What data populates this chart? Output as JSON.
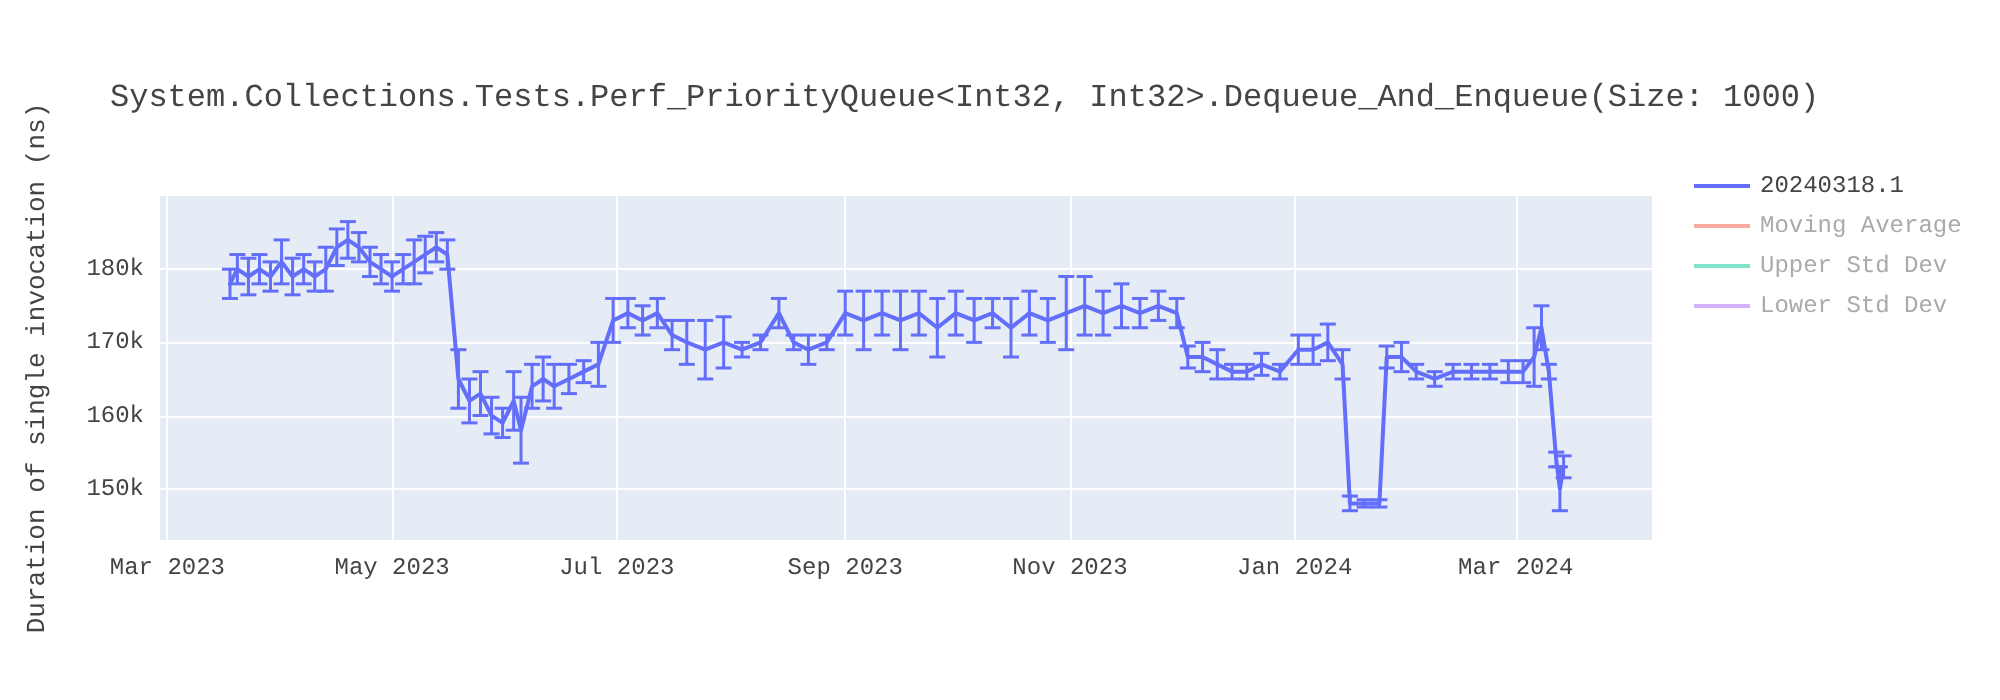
{
  "chart_data": {
    "type": "line",
    "title": "System.Collections.Tests.Perf_PriorityQueue<Int32, Int32>.Dequeue_And_Enqueue(Size: 1000)",
    "ylabel": "Duration of single invocation (ns)",
    "x": [
      "2023-03-18",
      "2023-03-20",
      "2023-03-23",
      "2023-03-26",
      "2023-03-29",
      "2023-04-01",
      "2023-04-04",
      "2023-04-07",
      "2023-04-10",
      "2023-04-13",
      "2023-04-16",
      "2023-04-19",
      "2023-04-22",
      "2023-04-25",
      "2023-04-28",
      "2023-05-01",
      "2023-05-04",
      "2023-05-07",
      "2023-05-10",
      "2023-05-13",
      "2023-05-16",
      "2023-05-19",
      "2023-05-22",
      "2023-05-25",
      "2023-05-28",
      "2023-05-31",
      "2023-06-03",
      "2023-06-05",
      "2023-06-08",
      "2023-06-11",
      "2023-06-14",
      "2023-06-18",
      "2023-06-22",
      "2023-06-26",
      "2023-06-30",
      "2023-07-04",
      "2023-07-08",
      "2023-07-12",
      "2023-07-16",
      "2023-07-20",
      "2023-07-25",
      "2023-07-30",
      "2023-08-04",
      "2023-08-09",
      "2023-08-14",
      "2023-08-18",
      "2023-08-22",
      "2023-08-27",
      "2023-09-01",
      "2023-09-06",
      "2023-09-11",
      "2023-09-16",
      "2023-09-21",
      "2023-09-26",
      "2023-10-01",
      "2023-10-06",
      "2023-10-11",
      "2023-10-16",
      "2023-10-21",
      "2023-10-26",
      "2023-10-31",
      "2023-11-05",
      "2023-11-10",
      "2023-11-15",
      "2023-11-20",
      "2023-11-25",
      "2023-11-30",
      "2023-12-03",
      "2023-12-07",
      "2023-12-11",
      "2023-12-15",
      "2023-12-19",
      "2023-12-23",
      "2023-12-28",
      "2024-01-02",
      "2024-01-06",
      "2024-01-10",
      "2024-01-14",
      "2024-01-16",
      "2024-01-20",
      "2024-01-24",
      "2024-01-26",
      "2024-01-30",
      "2024-02-03",
      "2024-02-08",
      "2024-02-13",
      "2024-02-18",
      "2024-02-23",
      "2024-02-28",
      "2024-03-03",
      "2024-03-06",
      "2024-03-08",
      "2024-03-10",
      "2024-03-12",
      "2024-03-13",
      "2024-03-14"
    ],
    "series": [
      {
        "name": "20240318.1",
        "color": "#636efa",
        "values": [
          178000,
          180000,
          179000,
          180000,
          179000,
          181000,
          179000,
          180000,
          179000,
          180000,
          183000,
          184000,
          183000,
          181000,
          180000,
          179000,
          180000,
          181000,
          182000,
          183000,
          182000,
          165000,
          162000,
          163000,
          160000,
          159000,
          162000,
          158000,
          164000,
          165000,
          164000,
          165000,
          166000,
          167000,
          173000,
          174000,
          173000,
          174000,
          171000,
          170000,
          169000,
          170000,
          169000,
          170000,
          174000,
          170000,
          169000,
          170000,
          174000,
          173000,
          174000,
          173000,
          174000,
          172000,
          174000,
          173000,
          174000,
          172000,
          174000,
          173000,
          174000,
          175000,
          174000,
          175000,
          174000,
          175000,
          174000,
          168000,
          168000,
          167000,
          166000,
          166000,
          167000,
          166000,
          169000,
          169000,
          170000,
          167000,
          148000,
          148000,
          148000,
          168000,
          168000,
          166000,
          165000,
          166000,
          166000,
          166000,
          166000,
          166000,
          168000,
          172000,
          166000,
          154000,
          150000,
          153000
        ],
        "errors": [
          2000,
          2000,
          2500,
          2000,
          2000,
          3000,
          2500,
          2000,
          2000,
          3000,
          2500,
          2500,
          2000,
          2000,
          2000,
          2000,
          2000,
          3000,
          2500,
          2000,
          2000,
          4000,
          3000,
          3000,
          2500,
          2000,
          4000,
          4500,
          3000,
          3000,
          3000,
          2000,
          1500,
          3000,
          3000,
          2000,
          2000,
          2000,
          2000,
          3000,
          4000,
          3500,
          1000,
          1000,
          2000,
          1000,
          2000,
          1000,
          3000,
          4000,
          3000,
          4000,
          3000,
          4000,
          3000,
          3000,
          2000,
          4000,
          3000,
          3000,
          5000,
          4000,
          3000,
          3000,
          2000,
          2000,
          2000,
          1500,
          2000,
          2000,
          1000,
          1000,
          1500,
          1000,
          2000,
          2000,
          2500,
          2000,
          1000,
          500,
          500,
          1500,
          2000,
          1000,
          1000,
          1000,
          1000,
          1000,
          1500,
          1500,
          4000,
          3000,
          1000,
          1000,
          3000,
          1500
        ]
      },
      {
        "name": "Moving Average",
        "color": "#ef553b",
        "values": [
          null,
          null,
          null,
          null,
          null,
          null,
          null,
          null,
          null,
          null,
          null,
          null,
          null,
          null,
          null,
          null,
          null,
          null,
          null,
          null,
          null,
          null,
          null,
          null,
          null,
          null,
          null,
          null,
          null,
          null,
          null,
          null,
          null,
          null,
          null,
          null,
          null,
          null,
          null,
          null,
          null,
          null,
          null,
          null,
          null,
          null,
          null,
          null,
          null,
          null,
          null,
          null,
          null,
          null,
          null,
          null,
          null,
          null,
          null,
          null,
          null,
          null,
          null,
          null,
          null,
          null,
          null,
          null,
          null,
          null,
          null,
          null,
          null,
          null,
          null,
          null,
          null,
          null,
          null,
          null,
          null,
          null,
          null,
          null,
          null,
          null,
          null,
          null,
          null,
          null,
          null,
          null,
          null,
          null,
          null,
          null
        ]
      },
      {
        "name": "Upper Std Dev",
        "color": "#00cc96",
        "values": [
          null,
          null,
          null,
          null,
          null,
          null,
          null,
          null,
          null,
          null,
          null,
          null,
          null,
          null,
          null,
          null,
          null,
          null,
          null,
          null,
          null,
          null,
          null,
          null,
          null,
          null,
          null,
          null,
          null,
          null,
          null,
          null,
          null,
          null,
          null,
          null,
          null,
          null,
          null,
          null,
          null,
          null,
          null,
          null,
          null,
          null,
          null,
          null,
          null,
          null,
          null,
          null,
          null,
          null,
          null,
          null,
          null,
          null,
          null,
          null,
          null,
          null,
          null,
          null,
          null,
          null,
          null,
          null,
          null,
          null,
          null,
          null,
          null,
          null,
          null,
          null,
          null,
          null,
          null,
          null,
          null,
          null,
          null,
          null,
          null,
          null,
          null,
          null,
          null,
          null,
          null,
          null,
          null,
          null,
          null,
          null
        ]
      },
      {
        "name": "Lower Std Dev",
        "color": "#ab63fa",
        "values": [
          null,
          null,
          null,
          null,
          null,
          null,
          null,
          null,
          null,
          null,
          null,
          null,
          null,
          null,
          null,
          null,
          null,
          null,
          null,
          null,
          null,
          null,
          null,
          null,
          null,
          null,
          null,
          null,
          null,
          null,
          null,
          null,
          null,
          null,
          null,
          null,
          null,
          null,
          null,
          null,
          null,
          null,
          null,
          null,
          null,
          null,
          null,
          null,
          null,
          null,
          null,
          null,
          null,
          null,
          null,
          null,
          null,
          null,
          null,
          null,
          null,
          null,
          null,
          null,
          null,
          null,
          null,
          null,
          null,
          null,
          null,
          null,
          null,
          null,
          null,
          null,
          null,
          null,
          null,
          null,
          null,
          null,
          null,
          null,
          null,
          null,
          null,
          null,
          null,
          null,
          null,
          null,
          null,
          null,
          null,
          null
        ]
      }
    ],
    "xlim": [
      "2023-02-27",
      "2024-04-07"
    ],
    "xticks": [
      {
        "value": "2023-03-01",
        "label": "Mar 2023"
      },
      {
        "value": "2023-05-01",
        "label": "May 2023"
      },
      {
        "value": "2023-07-01",
        "label": "Jul 2023"
      },
      {
        "value": "2023-09-01",
        "label": "Sep 2023"
      },
      {
        "value": "2023-11-01",
        "label": "Nov 2023"
      },
      {
        "value": "2024-01-01",
        "label": "Jan 2024"
      },
      {
        "value": "2024-03-01",
        "label": "Mar 2024"
      }
    ],
    "ylim": [
      143000,
      190000
    ],
    "yticks": [
      {
        "value": 150000,
        "label": "150k"
      },
      {
        "value": 160000,
        "label": "160k"
      },
      {
        "value": 170000,
        "label": "170k"
      },
      {
        "value": 180000,
        "label": "180k"
      }
    ],
    "grid": true,
    "legend": "top right",
    "marker": "none",
    "line_style": "solid"
  }
}
